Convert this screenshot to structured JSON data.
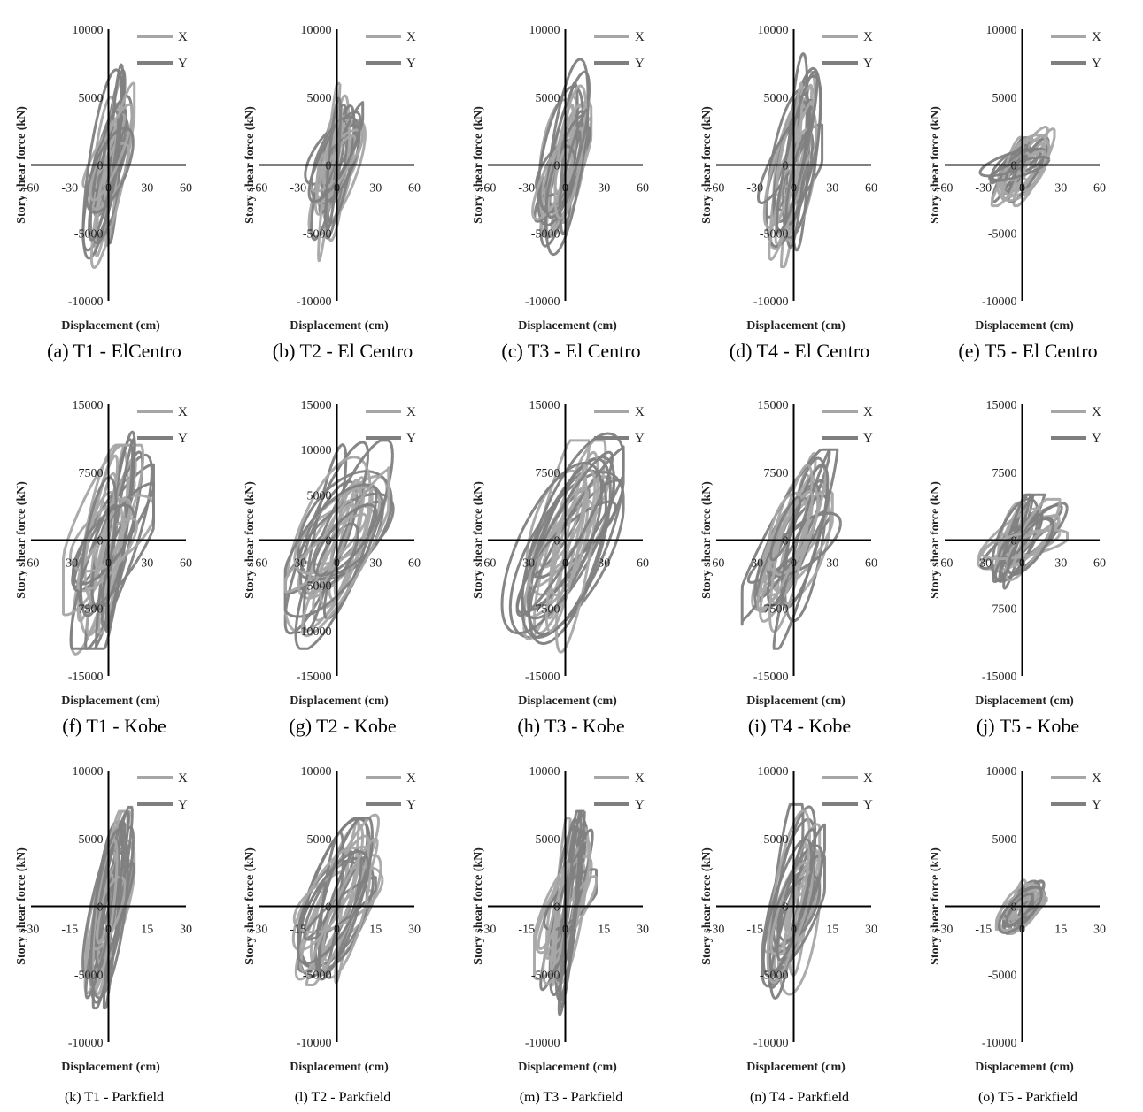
{
  "colors": {
    "X": "#a6a6a6",
    "Y": "#7f7f7f",
    "axis": "#000000"
  },
  "chart_data": [
    {
      "id": "a",
      "type": "line",
      "caption": "(a) T1 - ElCentro",
      "ylabel": "Story shear force (kN)",
      "xlabel": "Displacement (cm)",
      "xticks": [
        "-60",
        "-30",
        "0",
        "30",
        "60"
      ],
      "yticks": [
        "10000",
        "5000",
        "0",
        "-5000",
        "-10000"
      ],
      "xlim": [
        -60,
        60
      ],
      "ylim": [
        -10000,
        10000
      ],
      "series": [
        {
          "name": "X",
          "x_range": [
            -20,
            20
          ],
          "y_range": [
            -7800,
            6500
          ]
        },
        {
          "name": "Y",
          "x_range": [
            -22,
            22
          ],
          "y_range": [
            -7500,
            9000
          ]
        }
      ]
    },
    {
      "id": "b",
      "type": "line",
      "caption": "(b) T2 - El Centro",
      "ylabel": "Story shear force (kN)",
      "xlabel": "Displacement (cm)",
      "xticks": [
        "-60",
        "-30",
        "0",
        "30",
        "60"
      ],
      "yticks": [
        "10000",
        "5000",
        "0",
        "-5000",
        "-10000"
      ],
      "xlim": [
        -60,
        60
      ],
      "ylim": [
        -10000,
        10000
      ],
      "series": [
        {
          "name": "X",
          "x_range": [
            -38,
            22
          ],
          "y_range": [
            -7800,
            6000
          ]
        },
        {
          "name": "Y",
          "x_range": [
            -38,
            20
          ],
          "y_range": [
            -6500,
            6000
          ]
        }
      ]
    },
    {
      "id": "c",
      "type": "line",
      "caption": "(c) T3 - El Centro",
      "ylabel": "Story shear force (kN)",
      "xlabel": "Displacement (cm)",
      "xticks": [
        "-60",
        "-30",
        "0",
        "30",
        "60"
      ],
      "yticks": [
        "10000",
        "5000",
        "0",
        "-5000",
        "-10000"
      ],
      "xlim": [
        -60,
        60
      ],
      "ylim": [
        -10000,
        10000
      ],
      "series": [
        {
          "name": "X",
          "x_range": [
            -30,
            20
          ],
          "y_range": [
            -7000,
            6000
          ]
        },
        {
          "name": "Y",
          "x_range": [
            -30,
            22
          ],
          "y_range": [
            -7400,
            8200
          ]
        }
      ]
    },
    {
      "id": "d",
      "type": "line",
      "caption": "(d) T4 - El Centro",
      "ylabel": "Story shear force (kN)",
      "xlabel": "Displacement (cm)",
      "xticks": [
        "-60",
        "-30",
        "0",
        "30",
        "60"
      ],
      "yticks": [
        "10000",
        "5000",
        "0",
        "-5000",
        "-10000"
      ],
      "xlim": [
        -60,
        60
      ],
      "ylim": [
        -10000,
        10000
      ],
      "series": [
        {
          "name": "X",
          "x_range": [
            -30,
            20
          ],
          "y_range": [
            -7500,
            8000
          ]
        },
        {
          "name": "Y",
          "x_range": [
            -30,
            22
          ],
          "y_range": [
            -7000,
            8500
          ]
        }
      ]
    },
    {
      "id": "e",
      "type": "line",
      "caption": "(e) T5 - El Centro",
      "ylabel": "Story shear force (kN)",
      "xlabel": "Displacement (cm)",
      "xticks": [
        "-60",
        "-30",
        "0",
        "30",
        "60"
      ],
      "yticks": [
        "10000",
        "5000",
        "0",
        "-5000",
        "-10000"
      ],
      "xlim": [
        -60,
        60
      ],
      "ylim": [
        -10000,
        10000
      ],
      "series": [
        {
          "name": "X",
          "x_range": [
            -58,
            25
          ],
          "y_range": [
            -3000,
            3000
          ]
        },
        {
          "name": "Y",
          "x_range": [
            -58,
            25
          ],
          "y_range": [
            -3000,
            2000
          ]
        }
      ]
    },
    {
      "id": "f",
      "type": "line",
      "caption": "(f) T1 - Kobe",
      "ylabel": "Story shear force (kN)",
      "xlabel": "Displacement (cm)",
      "xticks": [
        "-60",
        "-30",
        "0",
        "30",
        "60"
      ],
      "yticks": [
        "15000",
        "7500",
        "0",
        "-7500",
        "-15000"
      ],
      "xlim": [
        -60,
        60
      ],
      "ylim": [
        -15000,
        15000
      ],
      "series": [
        {
          "name": "X",
          "x_range": [
            -35,
            35
          ],
          "y_range": [
            -14000,
            10500
          ]
        },
        {
          "name": "Y",
          "x_range": [
            -40,
            35
          ],
          "y_range": [
            -12000,
            13000
          ]
        }
      ]
    },
    {
      "id": "g",
      "type": "line",
      "caption": "(g) T2 - Kobe",
      "ylabel": "Story shear force (kN)",
      "xlabel": "Displacement (cm)",
      "xticks": [
        "-60",
        "-30",
        "0",
        "30",
        "60"
      ],
      "yticks": [
        "15000",
        "10000",
        "5000",
        "0",
        "-5000",
        "-10000",
        "-15000"
      ],
      "xlim": [
        -60,
        60
      ],
      "ylim": [
        -15000,
        15000
      ],
      "series": [
        {
          "name": "X",
          "x_range": [
            -40,
            40
          ],
          "y_range": [
            -11000,
            10000
          ]
        },
        {
          "name": "Y",
          "x_range": [
            -40,
            50
          ],
          "y_range": [
            -12000,
            11000
          ]
        }
      ]
    },
    {
      "id": "h",
      "type": "line",
      "caption": "(h) T3 - Kobe",
      "ylabel": "Story shear force (kN)",
      "xlabel": "Displacement (cm)",
      "xticks": [
        "-60",
        "-30",
        "0",
        "30",
        "60"
      ],
      "yticks": [
        "15000",
        "7500",
        "0",
        "-7500",
        "-15000"
      ],
      "xlim": [
        -60,
        60
      ],
      "ylim": [
        -15000,
        15000
      ],
      "series": [
        {
          "name": "X",
          "x_range": [
            -35,
            40
          ],
          "y_range": [
            -13000,
            11000
          ]
        },
        {
          "name": "Y",
          "x_range": [
            -58,
            45
          ],
          "y_range": [
            -12000,
            12000
          ]
        }
      ]
    },
    {
      "id": "i",
      "type": "line",
      "caption": "(i) T4 - Kobe",
      "ylabel": "Story shear force (kN)",
      "xlabel": "Displacement (cm)",
      "xticks": [
        "-60",
        "-30",
        "0",
        "30",
        "60"
      ],
      "yticks": [
        "15000",
        "7500",
        "0",
        "-7500",
        "-15000"
      ],
      "xlim": [
        -60,
        60
      ],
      "ylim": [
        -15000,
        15000
      ],
      "series": [
        {
          "name": "X",
          "x_range": [
            -35,
            30
          ],
          "y_range": [
            -11500,
            12000
          ]
        },
        {
          "name": "Y",
          "x_range": [
            -40,
            40
          ],
          "y_range": [
            -12000,
            10000
          ]
        }
      ]
    },
    {
      "id": "j",
      "type": "line",
      "caption": "(j) T5 - Kobe",
      "ylabel": "Story shear force (kN)",
      "xlabel": "Displacement (cm)",
      "xticks": [
        "-60",
        "-30",
        "0",
        "30",
        "60"
      ],
      "yticks": [
        "15000",
        "7500",
        "0",
        "-7500",
        "-15000"
      ],
      "xlim": [
        -60,
        60
      ],
      "ylim": [
        -15000,
        15000
      ],
      "series": [
        {
          "name": "X",
          "x_range": [
            -45,
            35
          ],
          "y_range": [
            -5000,
            4500
          ]
        },
        {
          "name": "Y",
          "x_range": [
            -35,
            35
          ],
          "y_range": [
            -5500,
            5000
          ]
        }
      ]
    },
    {
      "id": "k",
      "type": "line",
      "caption": "(k) T1 - Parkfield",
      "ylabel": "Story shear force (kN)",
      "xlabel": "Displacement (cm)",
      "xticks": [
        "-30",
        "-15",
        "0",
        "15",
        "30"
      ],
      "yticks": [
        "10000",
        "5000",
        "0",
        "-5000",
        "-10000"
      ],
      "xlim": [
        -30,
        30
      ],
      "ylim": [
        -10000,
        10000
      ],
      "series": [
        {
          "name": "X",
          "x_range": [
            -10,
            10
          ],
          "y_range": [
            -6800,
            7000
          ]
        },
        {
          "name": "Y",
          "x_range": [
            -12,
            10
          ],
          "y_range": [
            -7500,
            7300
          ]
        }
      ]
    },
    {
      "id": "l",
      "type": "line",
      "caption": "(l) T2 - Parkfield",
      "ylabel": "Story shear force (kN)",
      "xlabel": "Displacement (cm)",
      "xticks": [
        "-30",
        "-15",
        "0",
        "15",
        "30"
      ],
      "yticks": [
        "10000",
        "5000",
        "0",
        "-5000",
        "-10000"
      ],
      "xlim": [
        -30,
        30
      ],
      "ylim": [
        -10000,
        10000
      ],
      "series": [
        {
          "name": "X",
          "x_range": [
            -18,
            18
          ],
          "y_range": [
            -5800,
            7300
          ]
        },
        {
          "name": "Y",
          "x_range": [
            -15,
            15
          ],
          "y_range": [
            -7000,
            6500
          ]
        }
      ]
    },
    {
      "id": "m",
      "type": "line",
      "caption": "(m) T3 - Parkfield",
      "ylabel": "Story shear force (kN)",
      "xlabel": "Displacement (cm)",
      "xticks": [
        "-30",
        "-15",
        "0",
        "15",
        "30"
      ],
      "yticks": [
        "10000",
        "5000",
        "0",
        "-5000",
        "-10000"
      ],
      "xlim": [
        -30,
        30
      ],
      "ylim": [
        -10000,
        10000
      ],
      "series": [
        {
          "name": "X",
          "x_range": [
            -12,
            12
          ],
          "y_range": [
            -7000,
            6500
          ]
        },
        {
          "name": "Y",
          "x_range": [
            -12,
            12
          ],
          "y_range": [
            -8000,
            7000
          ]
        }
      ]
    },
    {
      "id": "n",
      "type": "line",
      "caption": "(n) T4 - Parkfield",
      "ylabel": "Story shear force (kN)",
      "xlabel": "Displacement (cm)",
      "xticks": [
        "-30",
        "-15",
        "0",
        "15",
        "30"
      ],
      "yticks": [
        "10000",
        "5000",
        "0",
        "-5000",
        "-10000"
      ],
      "xlim": [
        -30,
        30
      ],
      "ylim": [
        -10000,
        10000
      ],
      "series": [
        {
          "name": "X",
          "x_range": [
            -12,
            10
          ],
          "y_range": [
            -7500,
            8200
          ]
        },
        {
          "name": "Y",
          "x_range": [
            -12,
            12
          ],
          "y_range": [
            -9000,
            7500
          ]
        }
      ]
    },
    {
      "id": "o",
      "type": "line",
      "caption": "(o) T5 - Parkfield",
      "ylabel": "Story shear force (kN)",
      "xlabel": "Displacement (cm)",
      "xticks": [
        "-30",
        "-15",
        "0",
        "15",
        "30"
      ],
      "yticks": [
        "10000",
        "5000",
        "0",
        "-5000",
        "-10000"
      ],
      "xlim": [
        -30,
        30
      ],
      "ylim": [
        -10000,
        10000
      ],
      "series": [
        {
          "name": "X",
          "x_range": [
            -10,
            10
          ],
          "y_range": [
            -2000,
            2500
          ]
        },
        {
          "name": "Y",
          "x_range": [
            -10,
            10
          ],
          "y_range": [
            -2000,
            2000
          ]
        }
      ]
    }
  ]
}
